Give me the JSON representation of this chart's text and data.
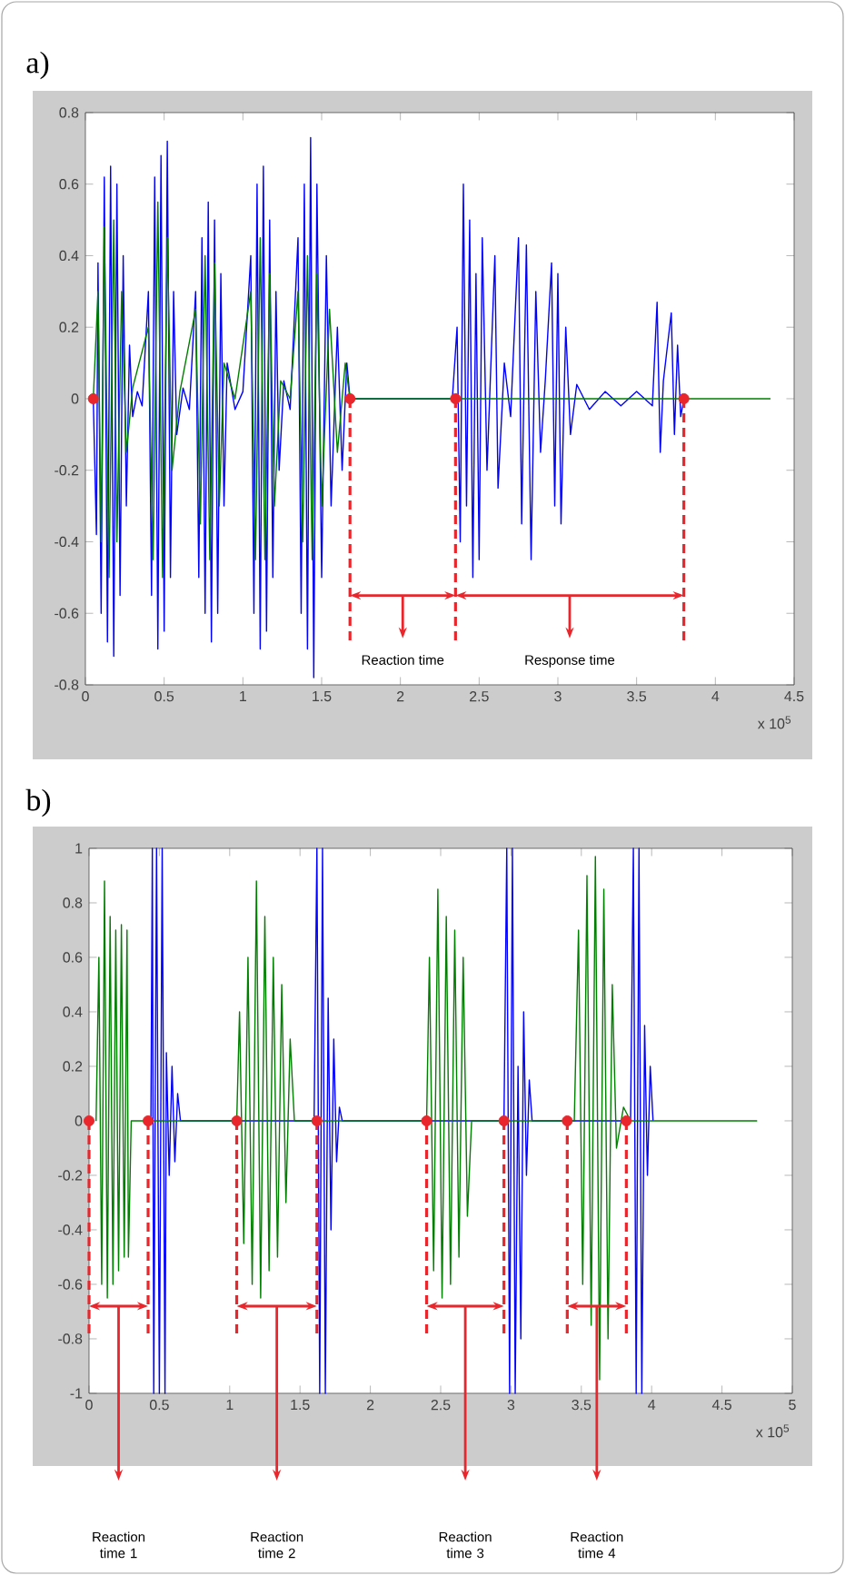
{
  "chart_data": [
    {
      "type": "line",
      "title": "a)",
      "xlim": [
        0,
        4.5
      ],
      "ylim": [
        -0.8,
        0.8
      ],
      "xticks": [
        0,
        0.5,
        1,
        1.5,
        2,
        2.5,
        3,
        3.5,
        4,
        4.5
      ],
      "yticks": [
        -0.8,
        -0.6,
        -0.4,
        -0.2,
        0,
        0.2,
        0.4,
        0.6,
        0.8
      ],
      "series": [
        {
          "color": "#0000ff",
          "x": [
            0.05,
            0.07,
            0.08,
            0.1,
            0.12,
            0.14,
            0.16,
            0.18,
            0.2,
            0.22,
            0.24,
            0.26,
            0.28,
            0.3,
            0.33,
            0.36,
            0.4,
            0.42,
            0.44,
            0.46,
            0.48,
            0.5,
            0.52,
            0.54,
            0.56,
            0.58,
            0.62,
            0.66,
            0.7,
            0.72,
            0.74,
            0.76,
            0.78,
            0.8,
            0.82,
            0.84,
            0.86,
            0.88,
            0.9,
            0.95,
            1.0,
            1.05,
            1.07,
            1.09,
            1.11,
            1.13,
            1.15,
            1.17,
            1.19,
            1.21,
            1.23,
            1.26,
            1.3,
            1.35,
            1.37,
            1.39,
            1.41,
            1.43,
            1.45,
            1.47,
            1.5,
            1.53,
            1.56,
            1.6,
            1.63,
            1.66,
            1.68,
            2.33,
            2.36,
            2.38,
            2.4,
            2.42,
            2.44,
            2.46,
            2.48,
            2.5,
            2.52,
            2.55,
            2.6,
            2.62,
            2.66,
            2.7,
            2.75,
            2.77,
            2.8,
            2.83,
            2.86,
            2.89,
            2.92,
            2.96,
            2.98,
            3.0,
            3.02,
            3.05,
            3.08,
            3.12,
            3.2,
            3.3,
            3.4,
            3.5,
            3.6,
            3.63,
            3.65,
            3.67,
            3.72,
            3.74,
            3.76,
            3.78,
            3.8
          ],
          "values": [
            0.0,
            -0.38,
            0.38,
            -0.6,
            0.62,
            -0.68,
            0.65,
            -0.72,
            0.6,
            -0.55,
            0.4,
            -0.3,
            0.15,
            -0.05,
            0.02,
            -0.02,
            0.3,
            -0.55,
            0.62,
            -0.7,
            0.68,
            -0.65,
            0.72,
            -0.5,
            0.3,
            -0.1,
            0.03,
            -0.03,
            0.3,
            -0.5,
            0.45,
            -0.6,
            0.55,
            -0.68,
            0.5,
            -0.6,
            0.35,
            -0.3,
            0.1,
            -0.03,
            0.02,
            0.4,
            -0.6,
            0.6,
            -0.7,
            0.65,
            -0.65,
            0.5,
            -0.5,
            0.3,
            -0.2,
            0.05,
            -0.03,
            0.45,
            -0.6,
            0.6,
            -0.7,
            0.73,
            -0.78,
            0.6,
            -0.5,
            0.4,
            -0.3,
            0.2,
            -0.2,
            0.1,
            0.0,
            0.0,
            0.2,
            -0.4,
            0.6,
            -0.3,
            0.5,
            -0.5,
            0.35,
            -0.45,
            0.45,
            -0.2,
            0.4,
            -0.25,
            0.1,
            -0.05,
            0.45,
            -0.35,
            0.43,
            -0.45,
            0.3,
            -0.15,
            0.05,
            0.38,
            -0.3,
            0.35,
            -0.35,
            0.2,
            -0.1,
            0.04,
            -0.03,
            0.02,
            -0.02,
            0.02,
            -0.02,
            0.27,
            -0.15,
            0.05,
            0.24,
            -0.1,
            0.15,
            -0.05,
            0.0
          ]
        },
        {
          "color": "#007f00",
          "x": [
            0.05,
            0.08,
            0.1,
            0.12,
            0.15,
            0.18,
            0.2,
            0.23,
            0.26,
            0.3,
            0.4,
            0.43,
            0.46,
            0.49,
            0.52,
            0.55,
            0.6,
            0.7,
            0.73,
            0.76,
            0.79,
            0.82,
            0.85,
            0.88,
            0.95,
            1.05,
            1.08,
            1.11,
            1.14,
            1.17,
            1.2,
            1.24,
            1.3,
            1.35,
            1.38,
            1.41,
            1.44,
            1.47,
            1.5,
            1.55,
            1.6,
            1.65,
            1.68,
            4.35
          ],
          "values": [
            0.0,
            0.3,
            -0.4,
            0.48,
            -0.5,
            0.5,
            -0.4,
            0.3,
            -0.15,
            0.03,
            0.2,
            -0.45,
            0.55,
            -0.5,
            0.45,
            -0.2,
            0.02,
            0.25,
            -0.35,
            0.4,
            -0.45,
            0.38,
            -0.3,
            0.1,
            0.0,
            0.3,
            -0.45,
            0.45,
            -0.45,
            0.35,
            -0.3,
            0.05,
            0.0,
            0.3,
            -0.4,
            0.4,
            -0.45,
            0.35,
            -0.3,
            0.25,
            -0.15,
            0.1,
            0.0,
            0.0
          ]
        },
        {
          "type": "line",
          "line_style": "dashed",
          "color": "#e8262b",
          "x": [
            1.68,
            1.68
          ],
          "values": [
            0,
            -0.68
          ]
        },
        {
          "type": "line",
          "line_style": "dashed",
          "color": "#e8262b",
          "x": [
            2.35,
            2.35
          ],
          "values": [
            0,
            -0.68
          ]
        },
        {
          "type": "line",
          "line_style": "dashed",
          "color": "#e8262b",
          "x": [
            3.8,
            3.8
          ],
          "values": [
            0,
            -0.68
          ]
        },
        {
          "type": "scatter",
          "color": "#e8262b",
          "x": [
            0.05,
            1.68,
            2.35,
            3.8
          ],
          "values": [
            0,
            0,
            0,
            0
          ]
        }
      ],
      "annotations": [
        "x 10$^{5}$",
        "Reaction time",
        "Response time"
      ]
    },
    {
      "type": "line",
      "title": "b)",
      "xlim": [
        0,
        5
      ],
      "ylim": [
        -1,
        1
      ],
      "xticks": [
        0,
        0.5,
        1,
        1.5,
        2,
        2.5,
        3,
        3.5,
        4,
        4.5,
        5
      ],
      "yticks": [
        -1,
        -0.8,
        -0.6,
        -0.4,
        -0.2,
        0,
        0.2,
        0.4,
        0.6,
        0.8,
        1
      ],
      "series": [
        {
          "color": "#0000ff",
          "x": [
            0.44,
            0.45,
            0.46,
            0.48,
            0.5,
            0.52,
            0.54,
            0.55,
            0.57,
            0.59,
            0.61,
            0.63,
            0.65,
            1.6,
            1.62,
            1.64,
            1.66,
            1.68,
            1.7,
            1.72,
            1.74,
            1.76,
            1.78,
            1.8,
            2.95,
            2.97,
            2.99,
            3.01,
            3.03,
            3.05,
            3.07,
            3.09,
            3.11,
            3.13,
            3.15,
            3.85,
            3.87,
            3.89,
            3.91,
            3.93,
            3.95,
            3.97,
            3.99,
            4.01
          ],
          "values": [
            0.0,
            1.0,
            -1.0,
            1.0,
            -1.0,
            1.0,
            -1.0,
            0.25,
            -0.2,
            0.2,
            -0.15,
            0.1,
            0.0,
            0.0,
            1.0,
            -1.0,
            1.0,
            -1.0,
            0.45,
            -0.4,
            0.3,
            -0.15,
            0.05,
            0.0,
            0.0,
            1.0,
            -1.0,
            1.0,
            -1.0,
            0.2,
            -0.8,
            0.4,
            -0.2,
            0.15,
            0.0,
            0.0,
            1.0,
            -1.0,
            1.0,
            -1.0,
            0.35,
            -0.2,
            0.2,
            0.0
          ]
        },
        {
          "color": "#007f00",
          "x": [
            0.05,
            0.07,
            0.09,
            0.11,
            0.13,
            0.15,
            0.17,
            0.19,
            0.21,
            0.23,
            0.25,
            0.27,
            0.28,
            0.3,
            1.05,
            1.07,
            1.1,
            1.13,
            1.16,
            1.19,
            1.22,
            1.25,
            1.28,
            1.31,
            1.34,
            1.37,
            1.4,
            1.43,
            1.46,
            2.4,
            2.42,
            2.45,
            2.48,
            2.51,
            2.54,
            2.57,
            2.6,
            2.63,
            2.66,
            2.69,
            2.72,
            3.45,
            3.48,
            3.51,
            3.54,
            3.57,
            3.6,
            3.63,
            3.66,
            3.69,
            3.72,
            3.75,
            3.8,
            3.85,
            4.75
          ],
          "values": [
            0.0,
            0.6,
            -0.6,
            0.88,
            -0.65,
            0.75,
            -0.6,
            0.7,
            -0.55,
            0.72,
            -0.5,
            0.7,
            -0.5,
            0.0,
            0.0,
            0.4,
            -0.45,
            0.6,
            -0.6,
            0.88,
            -0.65,
            0.75,
            -0.55,
            0.6,
            -0.5,
            0.5,
            -0.3,
            0.3,
            0.0,
            0.0,
            0.6,
            -0.55,
            0.85,
            -0.65,
            0.75,
            -0.6,
            0.7,
            -0.5,
            0.6,
            -0.35,
            0.0,
            0.0,
            0.7,
            -0.6,
            0.9,
            -0.75,
            0.97,
            -0.95,
            0.85,
            -0.8,
            0.5,
            -0.1,
            0.05,
            0.0,
            0.0
          ]
        },
        {
          "type": "line",
          "line_style": "dashed",
          "color": "#e8262b",
          "x": [
            0.0,
            0.0
          ],
          "values": [
            0,
            -0.8
          ]
        },
        {
          "type": "line",
          "line_style": "dashed",
          "color": "#e8262b",
          "x": [
            0.42,
            0.42
          ],
          "values": [
            0,
            -0.8
          ]
        },
        {
          "type": "line",
          "line_style": "dashed",
          "color": "#e8262b",
          "x": [
            1.05,
            1.05
          ],
          "values": [
            0,
            -0.8
          ]
        },
        {
          "type": "line",
          "line_style": "dashed",
          "color": "#e8262b",
          "x": [
            1.62,
            1.62
          ],
          "values": [
            0,
            -0.8
          ]
        },
        {
          "type": "line",
          "line_style": "dashed",
          "color": "#e8262b",
          "x": [
            2.4,
            2.4
          ],
          "values": [
            0,
            -0.8
          ]
        },
        {
          "type": "line",
          "line_style": "dashed",
          "color": "#e8262b",
          "x": [
            2.95,
            2.95
          ],
          "values": [
            0,
            -0.8
          ]
        },
        {
          "type": "line",
          "line_style": "dashed",
          "color": "#e8262b",
          "x": [
            3.4,
            3.4
          ],
          "values": [
            0,
            -0.8
          ]
        },
        {
          "type": "line",
          "line_style": "dashed",
          "color": "#e8262b",
          "x": [
            3.82,
            3.82
          ],
          "values": [
            0,
            -0.8
          ]
        },
        {
          "type": "scatter",
          "color": "#e8262b",
          "x": [
            0.0,
            0.42,
            1.05,
            1.62,
            2.4,
            2.95,
            3.4,
            3.82
          ],
          "values": [
            0,
            0,
            0,
            0,
            0,
            0,
            0,
            0
          ]
        }
      ],
      "annotations": [
        "x 10$^{5}$",
        "Reaction time 1",
        "Reaction time 2",
        "Reaction time 3",
        "Reaction time 4"
      ]
    }
  ]
}
